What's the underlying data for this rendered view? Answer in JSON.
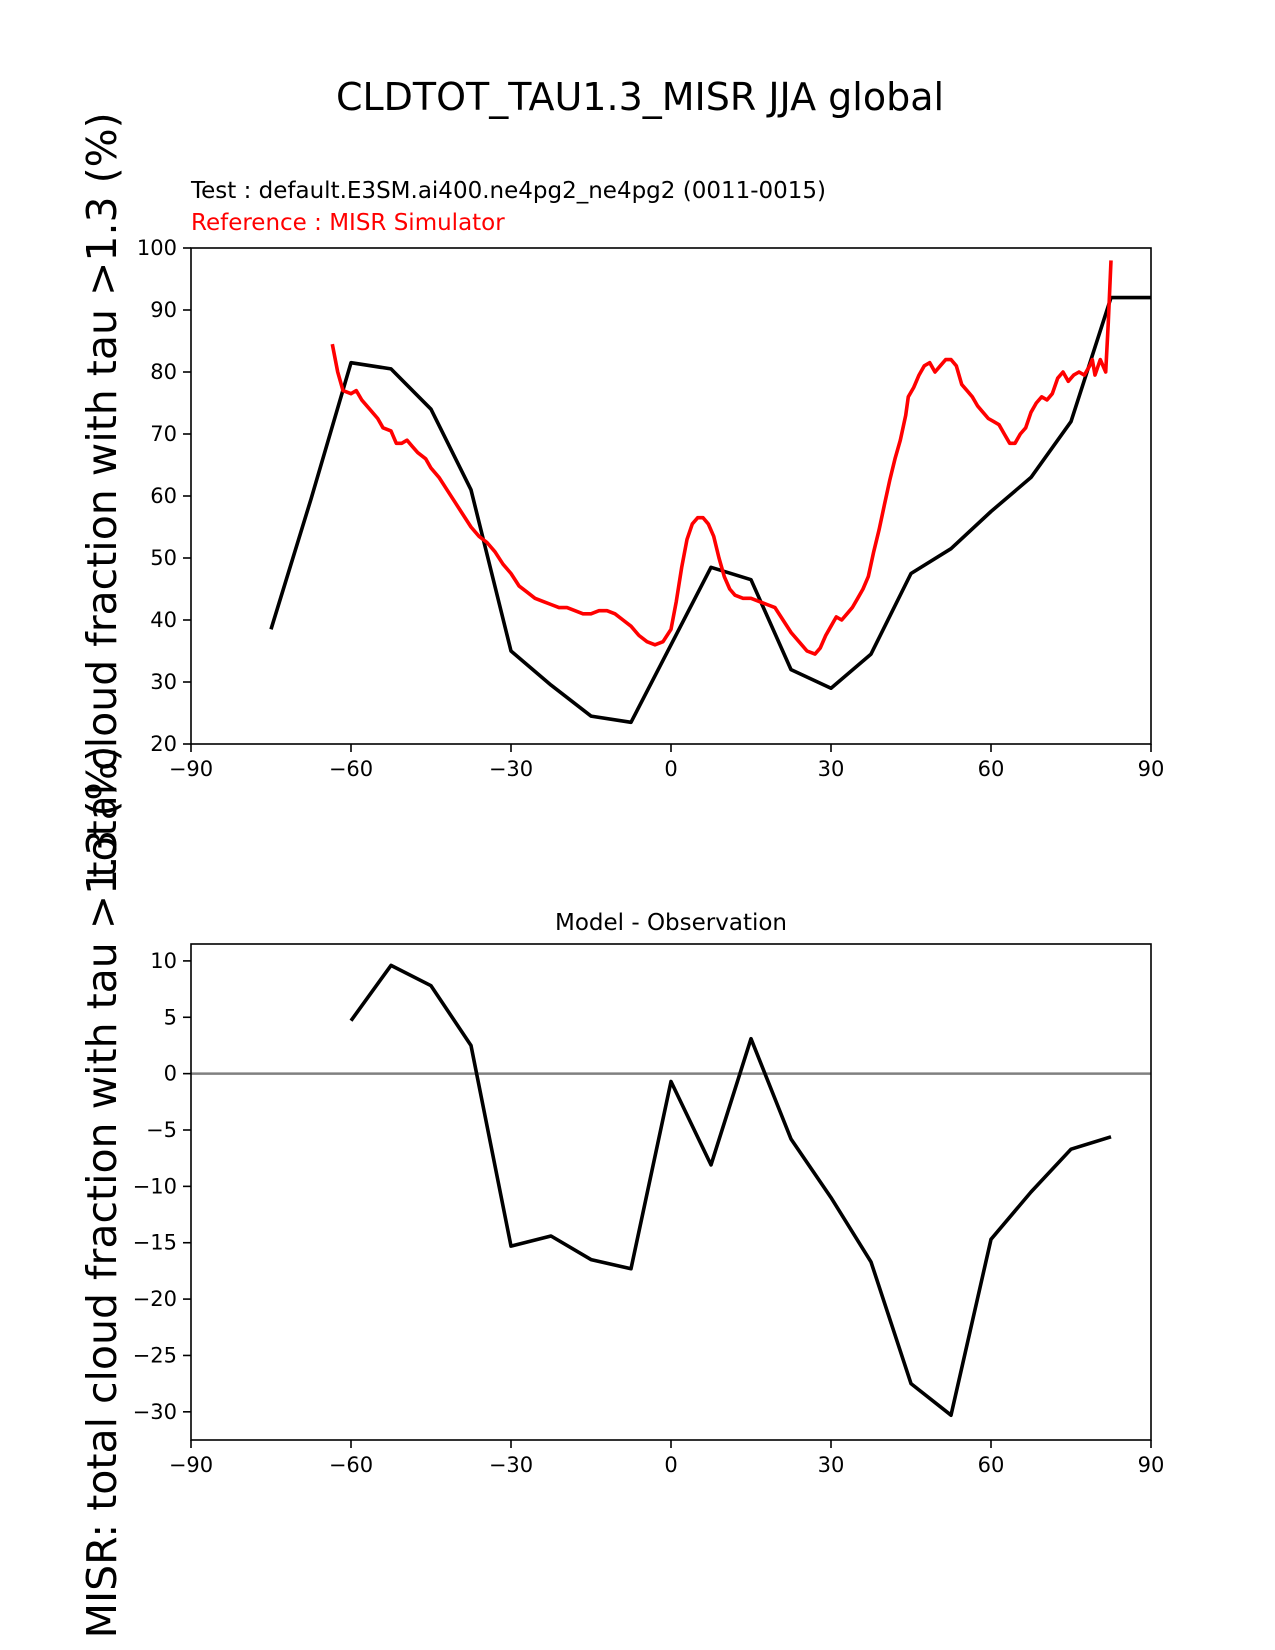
{
  "figure": {
    "title": "CLDTOT_TAU1.3_MISR JJA global",
    "test_label": "Test : default.E3SM.ai400.ne4pg2_ne4pg2 (0011-0015)",
    "reference_label": "Reference : MISR Simulator",
    "ylabel_top": "total cloud fraction with tau >1.3 (%)",
    "ylabel_bottom": "MISR: total cloud fraction with tau >1.3 (%)"
  },
  "chart_data": [
    {
      "type": "line",
      "title": "",
      "xlabel": "",
      "ylabel": "total cloud fraction with tau >1.3 (%)",
      "xlim": [
        -90,
        90
      ],
      "ylim": [
        20,
        100
      ],
      "xticks": [
        -90,
        -60,
        -30,
        0,
        30,
        60,
        90
      ],
      "xtick_labels": [
        "−90",
        "−60",
        "−30",
        "0",
        "30",
        "60",
        "90"
      ],
      "yticks": [
        20,
        30,
        40,
        50,
        60,
        70,
        80,
        90,
        100
      ],
      "ytick_labels": [
        "20",
        "30",
        "40",
        "50",
        "60",
        "70",
        "80",
        "90",
        "100"
      ],
      "series": [
        {
          "name": "Test",
          "color": "#000000",
          "points": [
            [
              -75,
              38.5
            ],
            [
              -67.5,
              59.5
            ],
            [
              -60,
              81.5
            ],
            [
              -52.5,
              80.5
            ],
            [
              -45,
              74
            ],
            [
              -37.5,
              61
            ],
            [
              -30,
              35
            ],
            [
              -22.5,
              29.5
            ],
            [
              -15,
              24.5
            ],
            [
              -7.5,
              23.5
            ],
            [
              0,
              36
            ],
            [
              7.5,
              48.5
            ],
            [
              15,
              46.5
            ],
            [
              22.5,
              32
            ],
            [
              30,
              29
            ],
            [
              37.5,
              34.5
            ],
            [
              45,
              47.5
            ],
            [
              52.5,
              51.5
            ],
            [
              60,
              57.5
            ],
            [
              67.5,
              63
            ],
            [
              75,
              72
            ],
            [
              82.5,
              92
            ],
            [
              90,
              92
            ]
          ]
        },
        {
          "name": "Reference",
          "color": "#ff0000",
          "points": [
            [
              -63.5,
              84.5
            ],
            [
              -62.5,
              80
            ],
            [
              -61.5,
              77
            ],
            [
              -60,
              76.5
            ],
            [
              -59,
              77
            ],
            [
              -58,
              75.5
            ],
            [
              -56.5,
              74
            ],
            [
              -55,
              72.5
            ],
            [
              -54,
              71
            ],
            [
              -52.5,
              70.5
            ],
            [
              -51.5,
              68.5
            ],
            [
              -50.5,
              68.5
            ],
            [
              -49.5,
              69
            ],
            [
              -48.5,
              68
            ],
            [
              -47.5,
              67
            ],
            [
              -46,
              66
            ],
            [
              -45,
              64.5
            ],
            [
              -43.5,
              63
            ],
            [
              -42,
              61
            ],
            [
              -40.5,
              59
            ],
            [
              -39,
              57
            ],
            [
              -37.5,
              55
            ],
            [
              -36,
              53.5
            ],
            [
              -34.5,
              52.5
            ],
            [
              -33,
              51
            ],
            [
              -31.5,
              49
            ],
            [
              -30,
              47.5
            ],
            [
              -28.5,
              45.5
            ],
            [
              -27,
              44.5
            ],
            [
              -25.5,
              43.5
            ],
            [
              -24,
              43
            ],
            [
              -22.5,
              42.5
            ],
            [
              -21,
              42
            ],
            [
              -19.5,
              42
            ],
            [
              -18,
              41.5
            ],
            [
              -16.5,
              41
            ],
            [
              -15,
              41
            ],
            [
              -13.5,
              41.5
            ],
            [
              -12,
              41.5
            ],
            [
              -10.5,
              41
            ],
            [
              -9,
              40
            ],
            [
              -7.5,
              39
            ],
            [
              -6,
              37.5
            ],
            [
              -4.5,
              36.5
            ],
            [
              -3,
              36
            ],
            [
              -1.5,
              36.5
            ],
            [
              0,
              38.5
            ],
            [
              1,
              43
            ],
            [
              2,
              48.5
            ],
            [
              3,
              53
            ],
            [
              4,
              55.5
            ],
            [
              5,
              56.5
            ],
            [
              6,
              56.5
            ],
            [
              7,
              55.5
            ],
            [
              8,
              53.5
            ],
            [
              9,
              50
            ],
            [
              10,
              47
            ],
            [
              11,
              45
            ],
            [
              12,
              44
            ],
            [
              13.5,
              43.5
            ],
            [
              15,
              43.5
            ],
            [
              16.5,
              43
            ],
            [
              18,
              42.5
            ],
            [
              19.5,
              42
            ],
            [
              21,
              40
            ],
            [
              22.5,
              38
            ],
            [
              24,
              36.5
            ],
            [
              25.5,
              35
            ],
            [
              27,
              34.5
            ],
            [
              28,
              35.5
            ],
            [
              29,
              37.5
            ],
            [
              30,
              39
            ],
            [
              31,
              40.5
            ],
            [
              32,
              40
            ],
            [
              33,
              41
            ],
            [
              34,
              42
            ],
            [
              35,
              43.5
            ],
            [
              36,
              45
            ],
            [
              37,
              47
            ],
            [
              38,
              51
            ],
            [
              39,
              54.5
            ],
            [
              40,
              58.5
            ],
            [
              41,
              62.5
            ],
            [
              42,
              66
            ],
            [
              43,
              69
            ],
            [
              44,
              73
            ],
            [
              44.5,
              76
            ],
            [
              45.5,
              77.5
            ],
            [
              46.5,
              79.5
            ],
            [
              47.5,
              81
            ],
            [
              48.5,
              81.5
            ],
            [
              49.5,
              80
            ],
            [
              50.5,
              81
            ],
            [
              51.5,
              82
            ],
            [
              52.5,
              82
            ],
            [
              53.5,
              81
            ],
            [
              54.5,
              78
            ],
            [
              55.5,
              77
            ],
            [
              56.5,
              76
            ],
            [
              57.5,
              74.5
            ],
            [
              58.5,
              73.5
            ],
            [
              59.5,
              72.5
            ],
            [
              60.5,
              72
            ],
            [
              61.5,
              71.5
            ],
            [
              62.5,
              70
            ],
            [
              63.5,
              68.5
            ],
            [
              64.5,
              68.5
            ],
            [
              65.5,
              70
            ],
            [
              66.5,
              71
            ],
            [
              67.5,
              73.5
            ],
            [
              68.5,
              75
            ],
            [
              69.5,
              76
            ],
            [
              70.5,
              75.5
            ],
            [
              71.5,
              76.5
            ],
            [
              72.5,
              79
            ],
            [
              73.5,
              80
            ],
            [
              74.5,
              78.5
            ],
            [
              75.5,
              79.5
            ],
            [
              76.5,
              80
            ],
            [
              77.5,
              79.5
            ],
            [
              78.5,
              81
            ],
            [
              79,
              82
            ],
            [
              79.5,
              79.5
            ],
            [
              80.5,
              82
            ],
            [
              81.5,
              80
            ],
            [
              82,
              88
            ],
            [
              82.5,
              98
            ]
          ]
        }
      ]
    },
    {
      "type": "line",
      "title": "Model - Observation",
      "xlabel": "",
      "ylabel": "",
      "xlim": [
        -90,
        90
      ],
      "ylim": [
        -32.5,
        11.5
      ],
      "xticks": [
        -90,
        -60,
        -30,
        0,
        30,
        60,
        90
      ],
      "xtick_labels": [
        "−90",
        "−60",
        "−30",
        "0",
        "30",
        "60",
        "90"
      ],
      "yticks": [
        10,
        5,
        0,
        -5,
        -10,
        -15,
        -20,
        -25,
        -30
      ],
      "ytick_labels": [
        "10",
        "5",
        "0",
        "−5",
        "−10",
        "−15",
        "−20",
        "−25",
        "−30"
      ],
      "zero_line": {
        "value": 0,
        "color": "#808080"
      },
      "series": [
        {
          "name": "Model - Observation",
          "color": "#000000",
          "points": [
            [
              -60,
              4.7
            ],
            [
              -52.5,
              9.6
            ],
            [
              -45,
              7.8
            ],
            [
              -37.5,
              2.5
            ],
            [
              -30,
              -15.3
            ],
            [
              -22.5,
              -14.4
            ],
            [
              -15,
              -16.5
            ],
            [
              -7.5,
              -17.3
            ],
            [
              0,
              -0.7
            ],
            [
              7.5,
              -8.1
            ],
            [
              15,
              3.1
            ],
            [
              22.5,
              -5.8
            ],
            [
              30,
              -11
            ],
            [
              37.5,
              -16.7
            ],
            [
              45,
              -27.5
            ],
            [
              52.5,
              -30.3
            ],
            [
              60,
              -14.7
            ],
            [
              67.5,
              -10.5
            ],
            [
              75,
              -6.7
            ],
            [
              82.5,
              -5.6
            ]
          ]
        }
      ]
    }
  ]
}
